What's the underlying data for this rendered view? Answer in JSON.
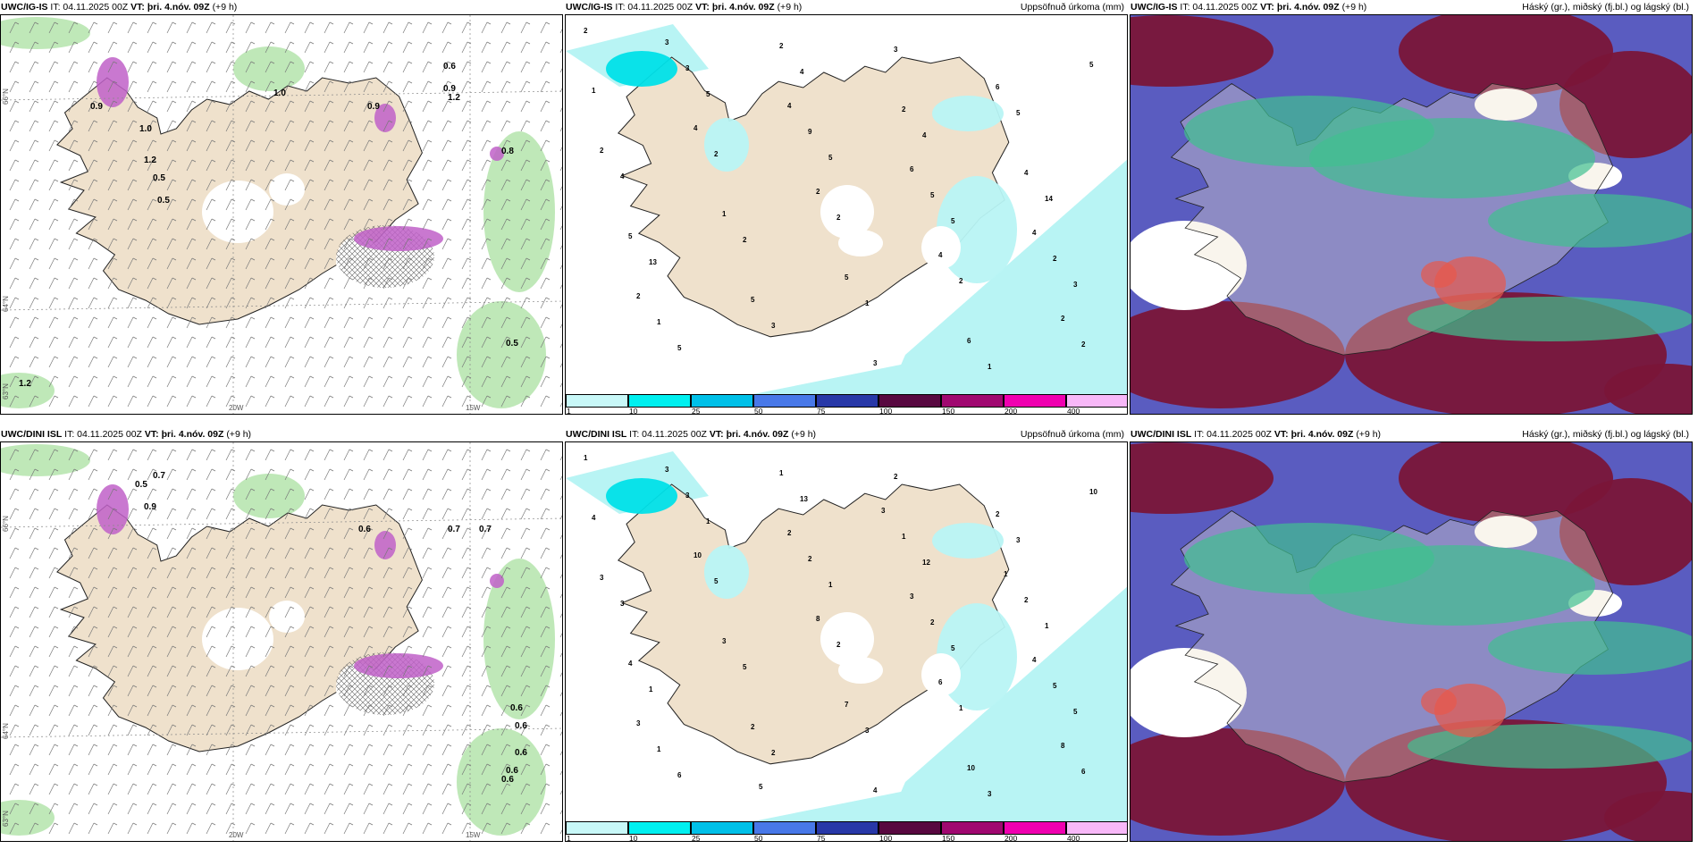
{
  "rows": [
    {
      "model": "UWC/IG-IS",
      "panels": [
        {
          "it": "IT: 04.11.2025 00Z",
          "vt_label": "VT:",
          "vt": "þri. 4.nóv. 09Z",
          "step": "(+9 h)",
          "right": ""
        },
        {
          "it": "IT: 04.11.2025 00Z",
          "vt_label": "VT:",
          "vt": "þri. 4.nóv. 09Z",
          "step": "(+9 h)",
          "right": "Uppsöfnuð úrkoma (mm)"
        },
        {
          "it": "IT: 04.11.2025 00Z",
          "vt_label": "VT:",
          "vt": "þri. 4.nóv. 09Z",
          "step": "(+9 h)",
          "right": "Háský (gr.), miðský (fj.bl.) og lágský (bl.)"
        }
      ],
      "precip_labels": [
        "2",
        "5",
        "5",
        "5",
        "3",
        "5",
        "4",
        "4",
        "14",
        "13",
        "3",
        "3",
        "5",
        "4",
        "2",
        "1",
        "1",
        "1",
        "2",
        "2",
        "2",
        "2",
        "3",
        "9",
        "5",
        "2",
        "1",
        "2",
        "2",
        "4",
        "5",
        "5",
        "3",
        "6",
        "2",
        "1",
        "5",
        "6",
        "5",
        "4",
        "2",
        "4",
        "2",
        "3",
        "4",
        "6",
        "4",
        "2"
      ],
      "wind_labels": [
        "0.9",
        "1.0",
        "1.2",
        "0.5",
        "0.5",
        "1.0",
        "0.9",
        "0.6",
        "0.9",
        "1.2",
        "0.8",
        "0.5",
        "1.2"
      ]
    },
    {
      "model": "UWC/DINI ISL",
      "panels": [
        {
          "it": "IT: 04.11.2025 00Z",
          "vt_label": "VT:",
          "vt": "þri. 4.nóv. 09Z",
          "step": "(+9 h)",
          "right": ""
        },
        {
          "it": "IT: 04.11.2025 00Z",
          "vt_label": "VT:",
          "vt": "þri. 4.nóv. 09Z",
          "step": "(+9 h)",
          "right": "Uppsöfnuð úrkoma (mm)"
        },
        {
          "it": "IT: 04.11.2025 00Z",
          "vt_label": "VT:",
          "vt": "þri. 4.nóv. 09Z",
          "step": "(+9 h)",
          "right": "Háský (gr.), miðský (fj.bl.) og lágský (bl.)"
        }
      ],
      "precip_labels": [
        "1",
        "1",
        "1",
        "5",
        "5",
        "6",
        "13",
        "12",
        "1",
        "1",
        "2",
        "2",
        "3",
        "3",
        "5",
        "3",
        "3",
        "4",
        "5",
        "2",
        "1",
        "6",
        "3",
        "2",
        "2",
        "5",
        "1",
        "1",
        "1",
        "2",
        "4",
        "2",
        "4",
        "2",
        "3",
        "3",
        "7",
        "10",
        "10",
        "10",
        "8",
        "6",
        "8",
        "3",
        "2",
        "3",
        "4",
        "3",
        "5",
        "3",
        "1"
      ],
      "wind_labels": [
        "0.5",
        "0.7",
        "0.9",
        "0.6",
        "0.7",
        "0.7",
        "0.6",
        "0.6",
        "0.6",
        "0.6",
        "0.6"
      ]
    }
  ],
  "axes": {
    "lat_labels": [
      "66°N",
      "64°N",
      "63°N"
    ],
    "lon_labels": [
      "20W",
      "15W"
    ]
  },
  "colorbar": {
    "labels": [
      "1",
      "10",
      "25",
      "50",
      "75",
      "100",
      "150",
      "200",
      "400"
    ],
    "colors": [
      "#c8f8f8",
      "#00f0f0",
      "#00c0e8",
      "#4878e8",
      "#2838a8",
      "#580840",
      "#a00870",
      "#f000b0",
      "#f8b8f8"
    ]
  },
  "colors": {
    "land": "#efe1cc",
    "sea_light": "#b8f4f4",
    "green": "#b8e6b0",
    "magenta": "#c060c8",
    "cloud_red": "#7a1538",
    "cloud_blue": "#5a5cc0",
    "cloud_green": "#40c090"
  }
}
